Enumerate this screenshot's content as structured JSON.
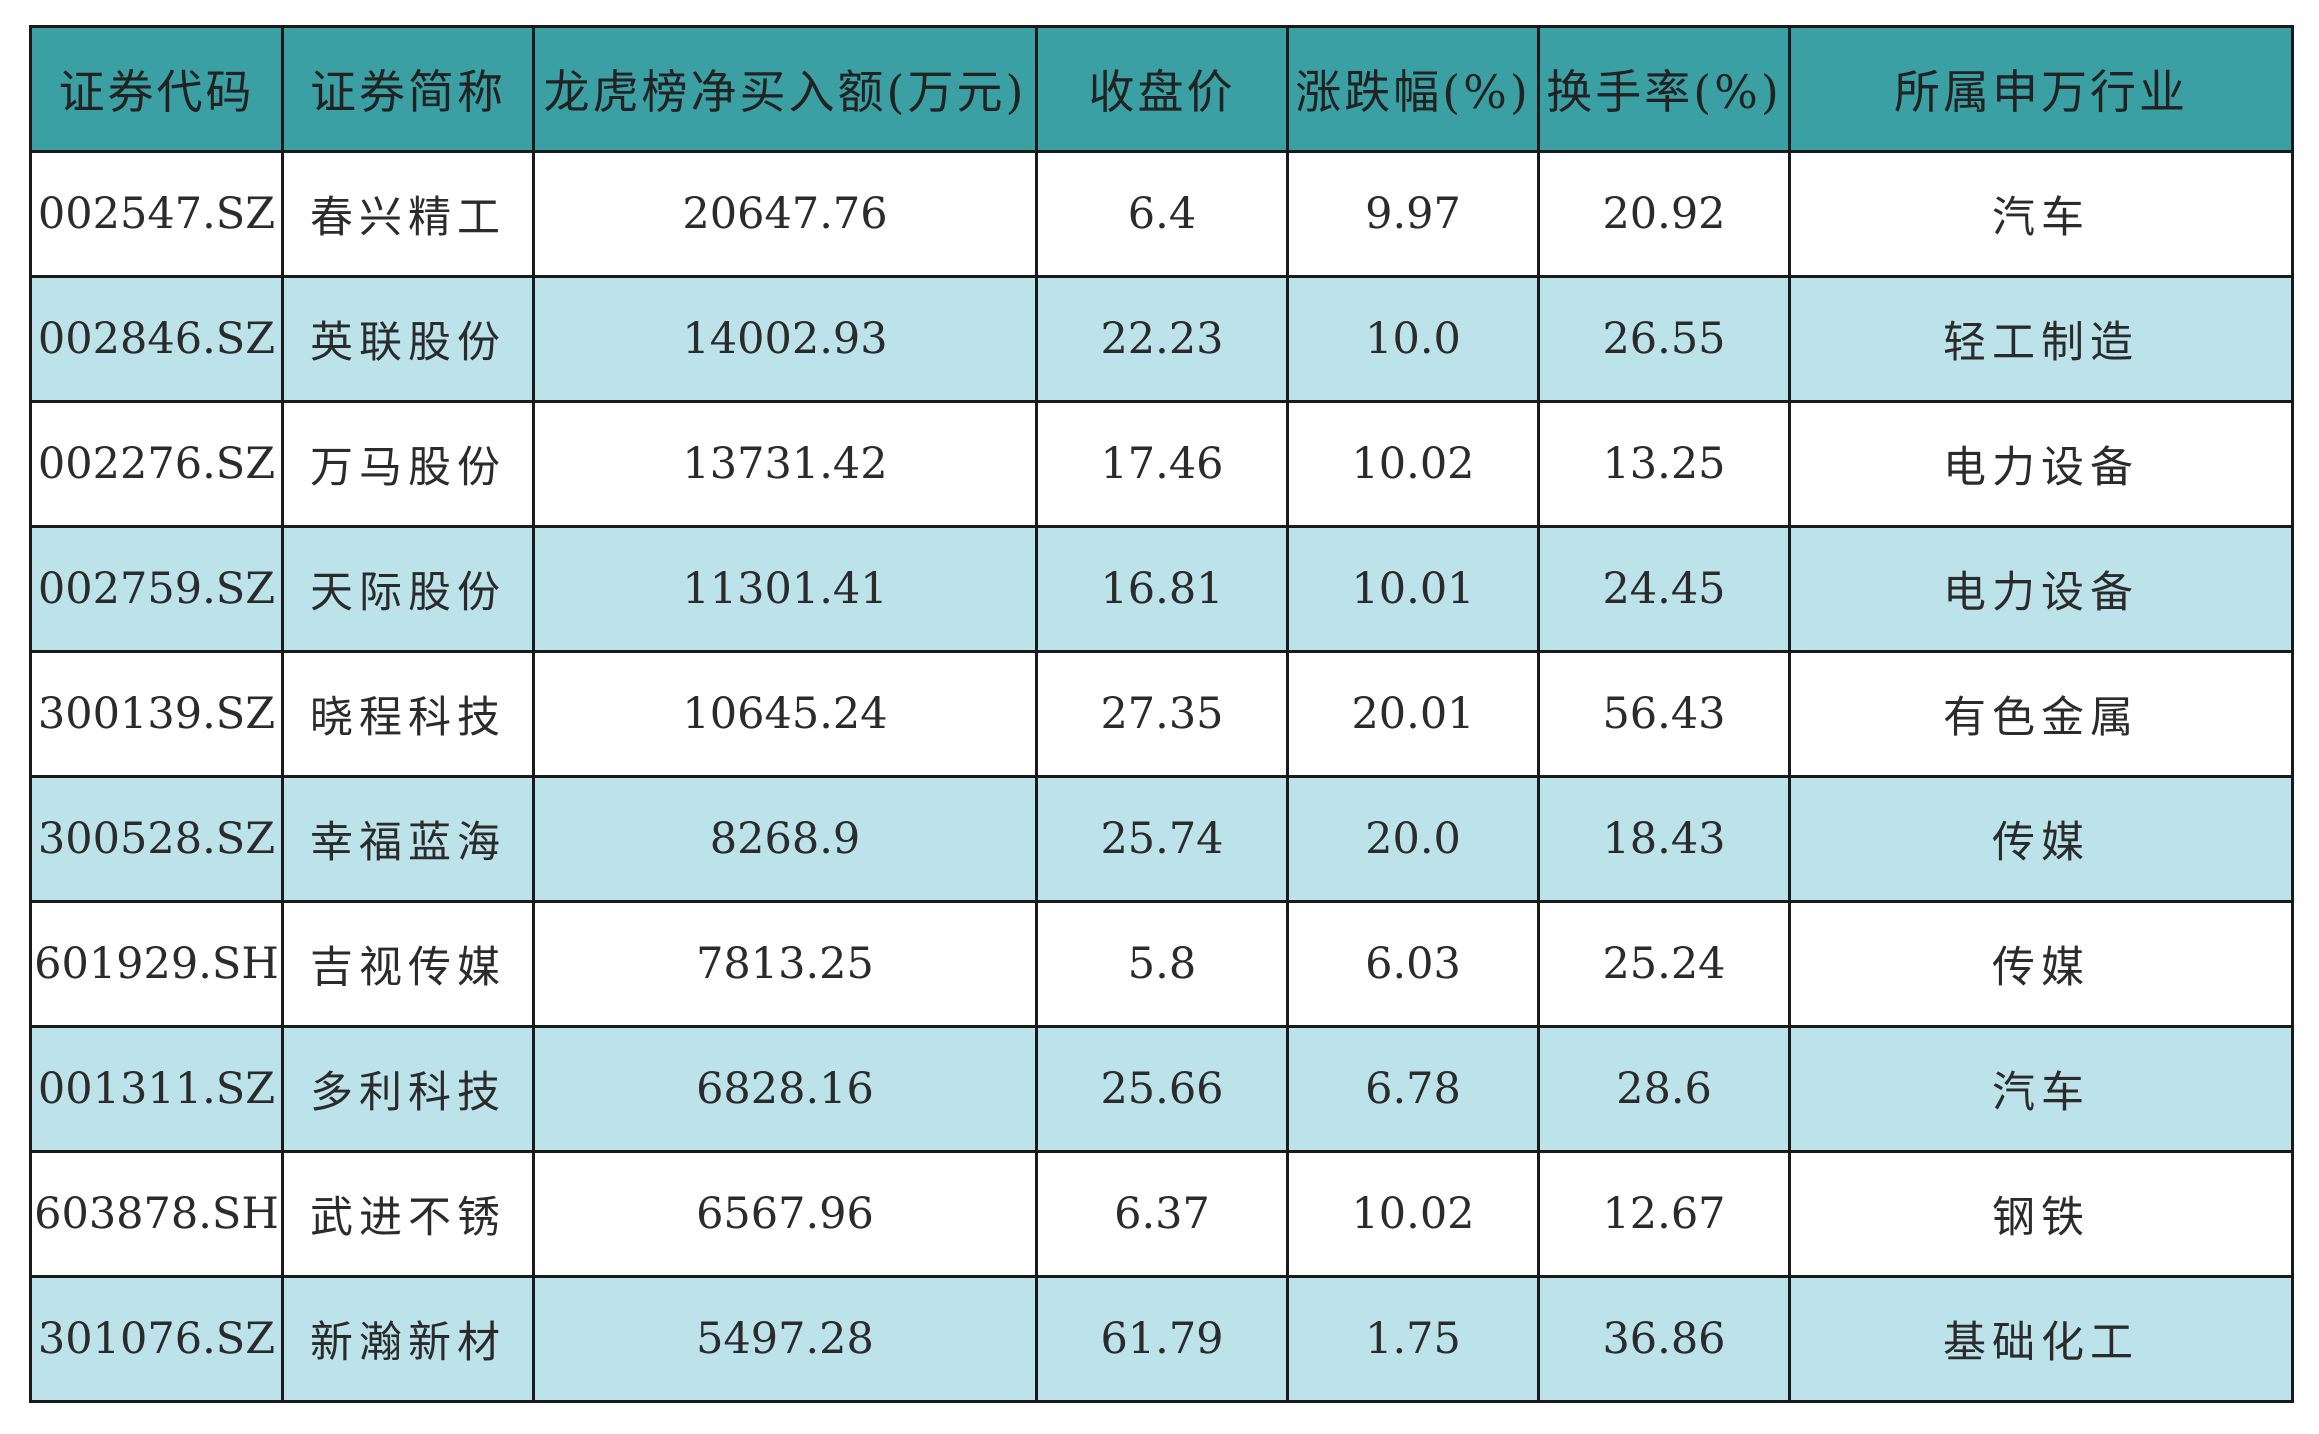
{
  "table": {
    "headers": [
      "证券代码",
      "证券简称",
      "龙虎榜净买入额(万元)",
      "收盘价",
      "涨跌幅(%)",
      "换手率(%)",
      "所属申万行业"
    ],
    "rows": [
      [
        "002547.SZ",
        "春兴精工",
        "20647.76",
        "6.4",
        "9.97",
        "20.92",
        "汽车"
      ],
      [
        "002846.SZ",
        "英联股份",
        "14002.93",
        "22.23",
        "10.0",
        "26.55",
        "轻工制造"
      ],
      [
        "002276.SZ",
        "万马股份",
        "13731.42",
        "17.46",
        "10.02",
        "13.25",
        "电力设备"
      ],
      [
        "002759.SZ",
        "天际股份",
        "11301.41",
        "16.81",
        "10.01",
        "24.45",
        "电力设备"
      ],
      [
        "300139.SZ",
        "晓程科技",
        "10645.24",
        "27.35",
        "20.01",
        "56.43",
        "有色金属"
      ],
      [
        "300528.SZ",
        "幸福蓝海",
        "8268.9",
        "25.74",
        "20.0",
        "18.43",
        "传媒"
      ],
      [
        "601929.SH",
        "吉视传媒",
        "7813.25",
        "5.8",
        "6.03",
        "25.24",
        "传媒"
      ],
      [
        "001311.SZ",
        "多利科技",
        "6828.16",
        "25.66",
        "6.78",
        "28.6",
        "汽车"
      ],
      [
        "603878.SH",
        "武进不锈",
        "6567.96",
        "6.37",
        "10.02",
        "12.67",
        "钢铁"
      ],
      [
        "301076.SZ",
        "新瀚新材",
        "5497.28",
        "61.79",
        "1.75",
        "36.86",
        "基础化工"
      ]
    ]
  },
  "colors": {
    "header_bg": "#3aa0a4",
    "odd_row_bg": "#ffffff",
    "even_row_bg": "#bde3ea",
    "border": "#1a1a1a"
  }
}
